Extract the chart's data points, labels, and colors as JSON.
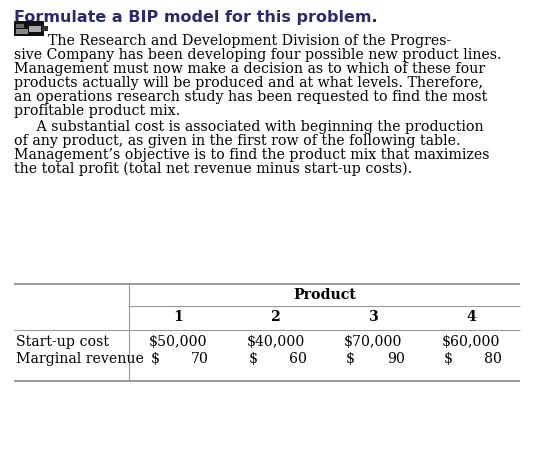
{
  "title": "Formulate a BIP model for this problem.",
  "title_color": "#2b2b6b",
  "title_fontsize": 11.5,
  "title_fontfamily": "sans-serif",
  "para1_lines": [
    "The Research and Development Division of the Progres-",
    "sive Company has been developing four possible new product lines.",
    "Management must now make a decision as to which of these four",
    "products actually will be produced and at what levels. Therefore,",
    "an operations research study has been requested to find the most",
    "profitable product mix."
  ],
  "para2_lines": [
    "     A substantial cost is associated with beginning the production",
    "of any product, as given in the first row of the following table.",
    "Management’s objective is to find the product mix that maximizes",
    "the total profit (total net revenue minus start-up costs)."
  ],
  "body_fontsize": 10.2,
  "body_color": "#000000",
  "table_header": "Product",
  "table_cols": [
    "1",
    "2",
    "3",
    "4"
  ],
  "startup_label": "Start-up cost",
  "startup_vals": [
    "$50,000",
    "$40,000",
    "$70,000",
    "$60,000"
  ],
  "margin_label": "Marginal revenue",
  "margin_dollar": "$",
  "margin_vals": [
    "70",
    "60",
    "90",
    "80"
  ],
  "table_fontsize": 10.2,
  "table_color": "#000000",
  "line_color": "#999999",
  "bg_color": "#ffffff",
  "icon_color1": "#222222",
  "icon_color2": "#555555",
  "icon_color3": "#888888"
}
